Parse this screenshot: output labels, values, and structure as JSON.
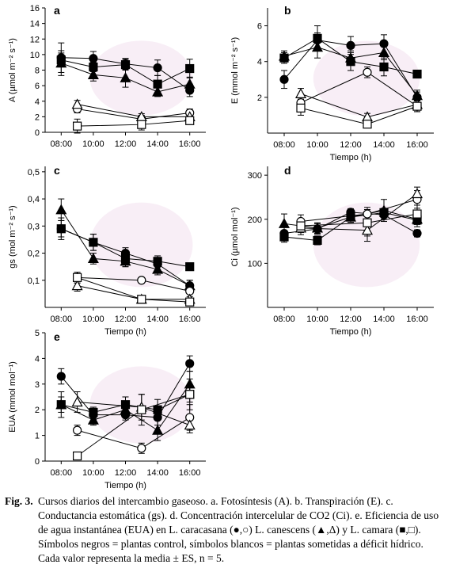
{
  "caption": {
    "label": "Fig. 3.",
    "text": "Cursos diarios del intercambio gaseoso. a. Fotosíntesis (A). b. Transpiración (E). c. Conductancia estomática (gs). d. Concentración intercelular de CO2 (Ci). e. Eficiencia de uso de agua instantánea (EUA) en L. caracasana (●,○) L. canescens (▲,Δ) y L. camara (■,□). Símbolos negros = plantas control, símbolos blancos = plantas sometidas a déficit hídrico. Cada valor representa la media ± ES, n = 5."
  },
  "chart_data": [
    {
      "type": "line",
      "panel": "a",
      "xlabel": "",
      "ylabel": "A (µmol m⁻² s⁻¹)",
      "xticks": [
        "08:00",
        "10:00",
        "12:00",
        "14:00",
        "16:00"
      ],
      "yticks": [
        "0",
        "2",
        "4",
        "6",
        "8",
        "10",
        "12",
        "14",
        "16"
      ],
      "ylim": [
        0,
        16
      ],
      "series": [
        {
          "marker": "circle",
          "filled": true,
          "x": [
            8,
            10,
            12,
            14,
            16
          ],
          "y": [
            9.6,
            9.5,
            8.8,
            8.3,
            5.4
          ],
          "err": [
            1.9,
            0.9,
            0.7,
            1.0,
            0.8
          ]
        },
        {
          "marker": "triangle",
          "filled": true,
          "x": [
            8,
            10,
            12,
            14,
            16
          ],
          "y": [
            8.9,
            7.4,
            7.0,
            5.2,
            6.2
          ],
          "err": [
            1.6,
            0.8,
            1.2,
            0.6,
            0.9
          ]
        },
        {
          "marker": "square",
          "filled": true,
          "x": [
            8,
            10,
            12,
            14,
            16
          ],
          "y": [
            9.3,
            8.4,
            8.7,
            6.2,
            8.2
          ],
          "err": [
            0.9,
            0.6,
            0.7,
            1.1,
            1.2
          ]
        },
        {
          "marker": "circle",
          "filled": false,
          "x": [
            9,
            13,
            16
          ],
          "y": [
            3.0,
            1.7,
            2.5
          ],
          "err": [
            0.5,
            0.5,
            0.5
          ]
        },
        {
          "marker": "triangle",
          "filled": false,
          "x": [
            9,
            13,
            16
          ],
          "y": [
            3.6,
            2.0,
            2.0
          ],
          "err": [
            0.5,
            0.4,
            0.4
          ]
        },
        {
          "marker": "square",
          "filled": false,
          "x": [
            9,
            13,
            16
          ],
          "y": [
            0.8,
            1.0,
            1.5
          ],
          "err": [
            0.9,
            0.7,
            0.5
          ]
        }
      ]
    },
    {
      "type": "line",
      "panel": "b",
      "xlabel": "Tiempo (h)",
      "ylabel": "E (mmol m⁻² s⁻¹)",
      "xticks": [
        "08:00",
        "10:00",
        "12:00",
        "14:00",
        "16:00"
      ],
      "yticks": [
        "2",
        "4",
        "6"
      ],
      "ylim": [
        0,
        7
      ],
      "series": [
        {
          "marker": "circle",
          "filled": true,
          "x": [
            8,
            10,
            12,
            14,
            16
          ],
          "y": [
            3.0,
            5.2,
            4.9,
            5.0,
            2.0
          ],
          "err": [
            0.5,
            0.4,
            0.5,
            0.5,
            0.3
          ]
        },
        {
          "marker": "triangle",
          "filled": true,
          "x": [
            8,
            10,
            12,
            14,
            16
          ],
          "y": [
            4.3,
            4.8,
            4.2,
            4.5,
            2.1
          ],
          "err": [
            0.3,
            0.6,
            0.4,
            0.4,
            0.3
          ]
        },
        {
          "marker": "square",
          "filled": true,
          "x": [
            8,
            10,
            12,
            14,
            16
          ],
          "y": [
            4.2,
            5.3,
            4.0,
            3.7,
            3.3
          ],
          "err": [
            0.3,
            0.7,
            0.5,
            0.5,
            0.2
          ]
        },
        {
          "marker": "circle",
          "filled": false,
          "x": [
            9,
            13,
            16
          ],
          "y": [
            1.7,
            3.4,
            1.5
          ],
          "err": [
            0.3,
            0.3,
            0.3
          ]
        },
        {
          "marker": "triangle",
          "filled": false,
          "x": [
            9,
            13,
            16
          ],
          "y": [
            2.2,
            0.9,
            1.6
          ],
          "err": [
            0.3,
            0.2,
            0.3
          ]
        },
        {
          "marker": "square",
          "filled": false,
          "x": [
            9,
            13,
            16
          ],
          "y": [
            1.4,
            0.5,
            1.5
          ],
          "err": [
            0.4,
            0.2,
            0.3
          ]
        }
      ]
    },
    {
      "type": "line",
      "panel": "c",
      "xlabel": "Tiempo (h)",
      "ylabel": "gs (mol m⁻² s⁻¹)",
      "xticks": [
        "08:00",
        "10:00",
        "12:00",
        "14:00",
        "16:00"
      ],
      "yticks": [
        "0,1",
        "0,2",
        "0,3",
        "0,4",
        "0,5"
      ],
      "ylim": [
        0,
        0.52
      ],
      "series": [
        {
          "marker": "circle",
          "filled": true,
          "x": [
            8,
            10,
            12,
            14,
            16
          ],
          "y": [
            0.29,
            0.24,
            0.2,
            0.16,
            0.08
          ],
          "err": [
            0.03,
            0.03,
            0.02,
            0.02,
            0.02
          ]
        },
        {
          "marker": "triangle",
          "filled": true,
          "x": [
            8,
            10,
            12,
            14,
            16
          ],
          "y": [
            0.36,
            0.18,
            0.17,
            0.14,
            0.08
          ],
          "err": [
            0.04,
            0.02,
            0.02,
            0.02,
            0.02
          ]
        },
        {
          "marker": "square",
          "filled": true,
          "x": [
            8,
            10,
            12,
            14,
            16
          ],
          "y": [
            0.29,
            0.24,
            0.18,
            0.17,
            0.15
          ],
          "err": [
            0.04,
            0.03,
            0.03,
            0.02,
            0.01
          ]
        },
        {
          "marker": "circle",
          "filled": false,
          "x": [
            9,
            13,
            16
          ],
          "y": [
            0.11,
            0.1,
            0.06
          ],
          "err": [
            0.02,
            0.01,
            0.03
          ]
        },
        {
          "marker": "triangle",
          "filled": false,
          "x": [
            9,
            13,
            16
          ],
          "y": [
            0.08,
            0.03,
            0.03
          ],
          "err": [
            0.02,
            0.01,
            0.01
          ]
        },
        {
          "marker": "square",
          "filled": false,
          "x": [
            9,
            13,
            16
          ],
          "y": [
            0.11,
            0.03,
            0.02
          ],
          "err": [
            0.02,
            0.01,
            0.01
          ]
        }
      ]
    },
    {
      "type": "line",
      "panel": "d",
      "xlabel": "Tiempo (h)",
      "ylabel": "Ci (µmol mol⁻¹)",
      "xticks": [
        "08:00",
        "10:00",
        "12:00",
        "14:00",
        "16:00"
      ],
      "yticks": [
        "100",
        "200",
        "300"
      ],
      "ylim": [
        0,
        320
      ],
      "series": [
        {
          "marker": "circle",
          "filled": true,
          "x": [
            8,
            10,
            12,
            14,
            16
          ],
          "y": [
            168,
            178,
            216,
            210,
            168
          ],
          "err": [
            15,
            12,
            8,
            10,
            8
          ]
        },
        {
          "marker": "triangle",
          "filled": true,
          "x": [
            8,
            10,
            12,
            14,
            16
          ],
          "y": [
            190,
            180,
            205,
            220,
            200
          ],
          "err": [
            22,
            12,
            12,
            25,
            12
          ]
        },
        {
          "marker": "square",
          "filled": true,
          "x": [
            8,
            10,
            12,
            14,
            16
          ],
          "y": [
            160,
            152,
            205,
            215,
            198
          ],
          "err": [
            12,
            10,
            12,
            10,
            15
          ]
        },
        {
          "marker": "circle",
          "filled": false,
          "x": [
            9,
            13,
            16
          ],
          "y": [
            195,
            212,
            245
          ],
          "err": [
            15,
            15,
            20
          ]
        },
        {
          "marker": "triangle",
          "filled": false,
          "x": [
            9,
            13,
            16
          ],
          "y": [
            180,
            175,
            258
          ],
          "err": [
            15,
            25,
            15
          ]
        },
        {
          "marker": "square",
          "filled": false,
          "x": [
            9,
            13,
            16
          ],
          "y": [
            185,
            192,
            212
          ],
          "err": [
            15,
            30,
            20
          ]
        }
      ]
    },
    {
      "type": "line",
      "panel": "e",
      "xlabel": "Tiempo (h)",
      "ylabel": "EUA (mmol mol⁻¹)",
      "xticks": [
        "08:00",
        "10:00",
        "12:00",
        "14:00",
        "16:00"
      ],
      "yticks": [
        "0",
        "1",
        "2",
        "3",
        "4",
        "5"
      ],
      "ylim": [
        0,
        5
      ],
      "series": [
        {
          "marker": "circle",
          "filled": true,
          "x": [
            8,
            10,
            12,
            14,
            16
          ],
          "y": [
            3.3,
            1.8,
            1.8,
            1.7,
            3.8
          ],
          "err": [
            0.3,
            0.2,
            0.2,
            0.3,
            0.3
          ]
        },
        {
          "marker": "triangle",
          "filled": true,
          "x": [
            8,
            10,
            12,
            14,
            16
          ],
          "y": [
            2.2,
            1.6,
            2.0,
            1.2,
            3.0
          ],
          "err": [
            0.3,
            0.2,
            0.3,
            0.4,
            0.5
          ]
        },
        {
          "marker": "square",
          "filled": true,
          "x": [
            8,
            10,
            12,
            14,
            16
          ],
          "y": [
            2.2,
            1.9,
            2.2,
            2.0,
            2.6
          ],
          "err": [
            0.5,
            0.2,
            0.3,
            0.4,
            0.3
          ]
        },
        {
          "marker": "circle",
          "filled": false,
          "x": [
            9,
            13,
            16
          ],
          "y": [
            1.2,
            0.5,
            1.7
          ],
          "err": [
            0.2,
            0.2,
            0.5
          ]
        },
        {
          "marker": "triangle",
          "filled": false,
          "x": [
            9,
            13,
            16
          ],
          "y": [
            2.3,
            2.1,
            1.4
          ],
          "err": [
            0.4,
            0.5,
            0.3
          ]
        },
        {
          "marker": "square",
          "filled": false,
          "x": [
            9,
            13,
            16
          ],
          "y": [
            0.2,
            2.0,
            2.6
          ],
          "err": [
            0.1,
            0.6,
            0.6
          ]
        }
      ]
    }
  ]
}
